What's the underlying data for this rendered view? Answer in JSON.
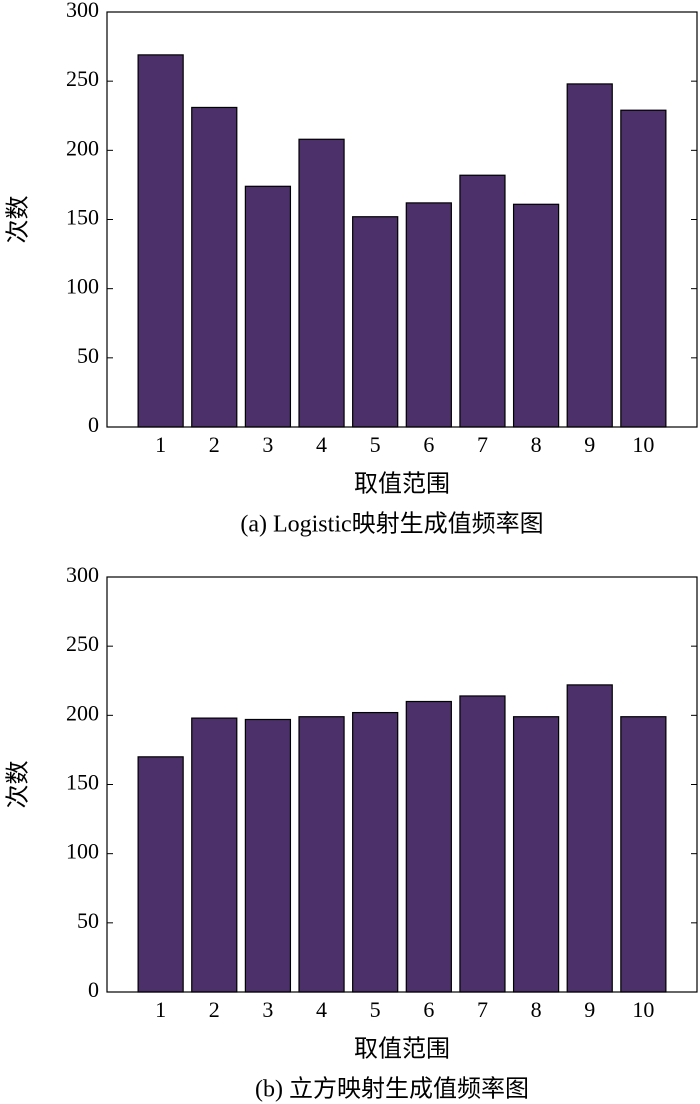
{
  "chart_data": [
    {
      "type": "bar",
      "title": "(a) Logistic映射生成值频率图",
      "x_label": "取值范围",
      "y_label": "次数",
      "categories": [
        "1",
        "2",
        "3",
        "4",
        "5",
        "6",
        "7",
        "8",
        "9",
        "10"
      ],
      "values": [
        269,
        231,
        174,
        208,
        152,
        162,
        182,
        161,
        248,
        229
      ],
      "color": "#4b3069",
      "ylim": [
        0,
        300
      ],
      "yticks": [
        0,
        50,
        100,
        150,
        200,
        250,
        300
      ],
      "grid": false
    },
    {
      "type": "bar",
      "title": "(b) 立方映射生成值频率图",
      "x_label": "取值范围",
      "y_label": "次数",
      "categories": [
        "1",
        "2",
        "3",
        "4",
        "5",
        "6",
        "7",
        "8",
        "9",
        "10"
      ],
      "values": [
        170,
        198,
        197,
        199,
        202,
        210,
        214,
        199,
        222,
        199
      ],
      "color": "#4b3069",
      "ylim": [
        0,
        300
      ],
      "yticks": [
        0,
        50,
        100,
        150,
        200,
        250,
        300
      ],
      "grid": false
    }
  ]
}
